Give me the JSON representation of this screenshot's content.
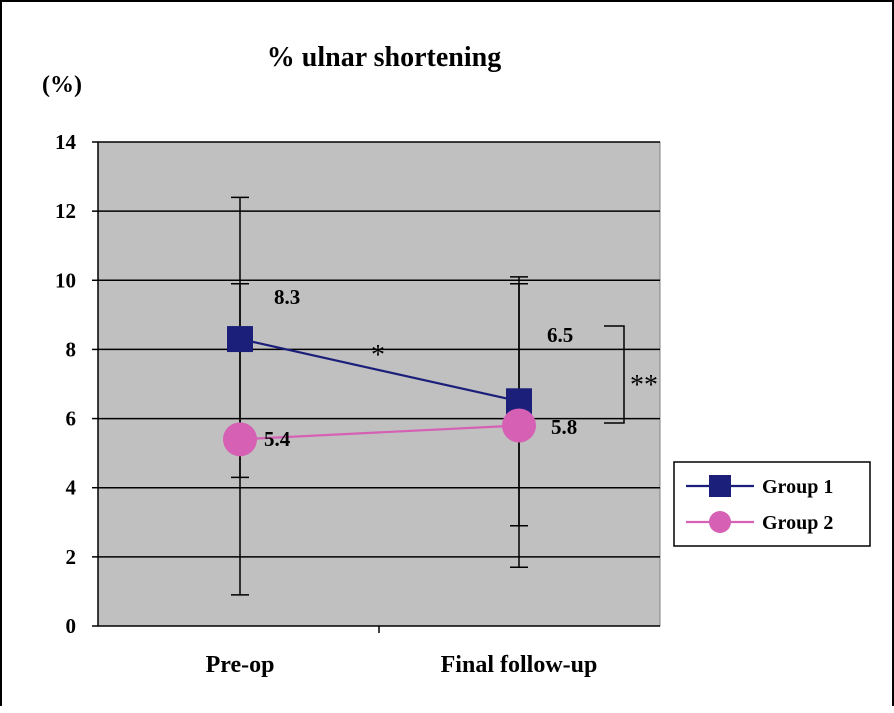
{
  "chart_data": {
    "type": "line",
    "title": "% ulnar shortening",
    "ylabel": "(%)",
    "xlabel": "",
    "categories": [
      "Pre-op",
      "Final follow-up"
    ],
    "ylim": [
      0,
      14
    ],
    "yticks": [
      "0",
      "2",
      "4",
      "6",
      "8",
      "10",
      "12",
      "14"
    ],
    "grid": true,
    "legend": "right",
    "series": [
      {
        "name": "Group 1",
        "values": [
          8.3,
          6.5
        ],
        "value_labels": [
          "8.3",
          "6.5"
        ],
        "error_low": [
          4.3,
          2.9
        ],
        "error_high": [
          12.4,
          10.1
        ],
        "color": "#1c1f7a",
        "marker": "square"
      },
      {
        "name": "Group 2",
        "values": [
          5.4,
          5.8
        ],
        "value_labels": [
          "5.4",
          "5.8"
        ],
        "error_low": [
          0.9,
          1.7
        ],
        "error_high": [
          9.9,
          9.9
        ],
        "color": "#d560b4",
        "marker": "circle"
      }
    ],
    "annotations": {
      "line_significance": "*",
      "between_groups_significance": "**"
    },
    "plot_background": "#c0c0c0"
  }
}
